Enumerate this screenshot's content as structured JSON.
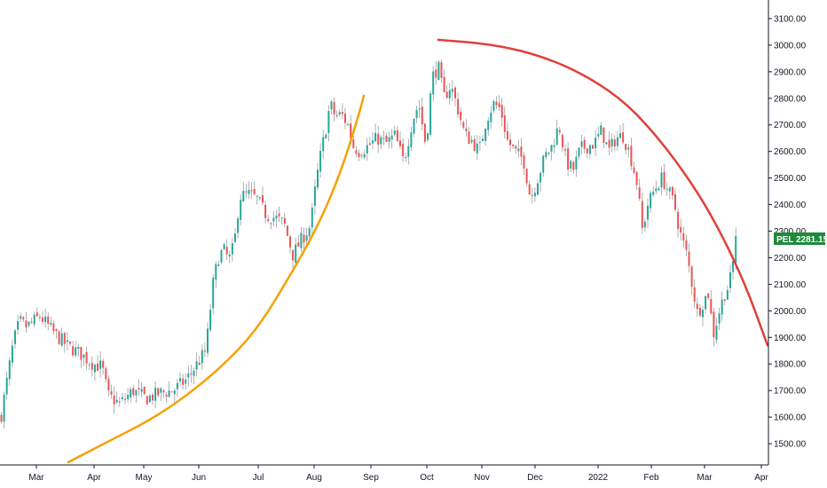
{
  "chart_data": {
    "type": "candlestick",
    "symbol": "PEL",
    "last_price_label": "2281.15",
    "last_price": 2281.15,
    "colors": {
      "up": "#26a69a",
      "down": "#ef5350",
      "price_badge": "#1e8a3c",
      "left_arc": "#f5a100",
      "right_arc": "#e0403a",
      "axis": "#131722",
      "grid_line": "#e0e3eb"
    },
    "x_ticks": [
      "Mar",
      "Apr",
      "May",
      "Jun",
      "Jul",
      "Aug",
      "Sep",
      "Oct",
      "Nov",
      "Dec",
      "2022",
      "Feb",
      "Mar",
      "Apr"
    ],
    "y_ticks": [
      "1500.00",
      "1600.00",
      "1700.00",
      "1800.00",
      "1900.00",
      "2000.00",
      "2100.00",
      "2200.00",
      "2300.00",
      "2400.00",
      "2500.00",
      "2600.00",
      "2700.00",
      "2800.00",
      "2900.00",
      "3000.00",
      "3100.00"
    ],
    "y_range": [
      1420,
      3170
    ],
    "trend_arcs": [
      {
        "name": "left-arc",
        "color": "orange",
        "points": [
          [
            77,
            1430
          ],
          [
            120,
            1505
          ],
          [
            170,
            1590
          ],
          [
            210,
            1680
          ],
          [
            250,
            1790
          ],
          [
            290,
            1930
          ],
          [
            330,
            2150
          ],
          [
            360,
            2330
          ],
          [
            385,
            2530
          ],
          [
            405,
            2745
          ],
          [
            410,
            2810
          ]
        ]
      },
      {
        "name": "right-arc",
        "color": "red",
        "points": [
          [
            494,
            3020
          ],
          [
            550,
            3005
          ],
          [
            600,
            2970
          ],
          [
            650,
            2905
          ],
          [
            700,
            2800
          ],
          [
            740,
            2660
          ],
          [
            780,
            2480
          ],
          [
            810,
            2310
          ],
          [
            840,
            2100
          ],
          [
            865,
            1870
          ]
        ]
      }
    ],
    "series": [
      {
        "name": "price",
        "anchors": [
          [
            1,
            1600
          ],
          [
            8,
            1740
          ],
          [
            15,
            1880
          ],
          [
            22,
            1960
          ],
          [
            30,
            1940
          ],
          [
            45,
            1980
          ],
          [
            60,
            1920
          ],
          [
            75,
            1870
          ],
          [
            90,
            1840
          ],
          [
            105,
            1800
          ],
          [
            115,
            1790
          ],
          [
            122,
            1680
          ],
          [
            135,
            1650
          ],
          [
            150,
            1700
          ],
          [
            165,
            1670
          ],
          [
            180,
            1690
          ],
          [
            195,
            1700
          ],
          [
            210,
            1740
          ],
          [
            222,
            1800
          ],
          [
            232,
            1850
          ],
          [
            240,
            2100
          ],
          [
            246,
            2200
          ],
          [
            252,
            2230
          ],
          [
            258,
            2190
          ],
          [
            264,
            2250
          ],
          [
            270,
            2430
          ],
          [
            280,
            2440
          ],
          [
            290,
            2420
          ],
          [
            300,
            2360
          ],
          [
            310,
            2350
          ],
          [
            320,
            2330
          ],
          [
            330,
            2210
          ],
          [
            340,
            2270
          ],
          [
            350,
            2320
          ],
          [
            356,
            2480
          ],
          [
            362,
            2600
          ],
          [
            368,
            2700
          ],
          [
            372,
            2780
          ],
          [
            378,
            2730
          ],
          [
            385,
            2740
          ],
          [
            392,
            2700
          ],
          [
            398,
            2620
          ],
          [
            405,
            2600
          ],
          [
            415,
            2620
          ],
          [
            425,
            2650
          ],
          [
            435,
            2630
          ],
          [
            445,
            2660
          ],
          [
            455,
            2560
          ],
          [
            465,
            2720
          ],
          [
            472,
            2780
          ],
          [
            480,
            2620
          ],
          [
            487,
            2880
          ],
          [
            494,
            2920
          ],
          [
            500,
            2800
          ],
          [
            508,
            2850
          ],
          [
            516,
            2760
          ],
          [
            524,
            2660
          ],
          [
            532,
            2640
          ],
          [
            540,
            2600
          ],
          [
            548,
            2720
          ],
          [
            556,
            2780
          ],
          [
            564,
            2760
          ],
          [
            572,
            2640
          ],
          [
            580,
            2600
          ],
          [
            590,
            2570
          ],
          [
            598,
            2420
          ],
          [
            606,
            2500
          ],
          [
            614,
            2580
          ],
          [
            622,
            2620
          ],
          [
            630,
            2700
          ],
          [
            638,
            2560
          ],
          [
            646,
            2530
          ],
          [
            654,
            2610
          ],
          [
            662,
            2620
          ],
          [
            670,
            2630
          ],
          [
            678,
            2680
          ],
          [
            686,
            2600
          ],
          [
            694,
            2650
          ],
          [
            702,
            2660
          ],
          [
            710,
            2590
          ],
          [
            718,
            2480
          ],
          [
            724,
            2300
          ],
          [
            730,
            2400
          ],
          [
            738,
            2460
          ],
          [
            746,
            2500
          ],
          [
            752,
            2460
          ],
          [
            760,
            2400
          ],
          [
            766,
            2300
          ],
          [
            774,
            2210
          ],
          [
            780,
            2100
          ],
          [
            786,
            1990
          ],
          [
            792,
            2030
          ],
          [
            798,
            2070
          ],
          [
            804,
            1910
          ],
          [
            810,
            1990
          ],
          [
            816,
            2060
          ],
          [
            822,
            2100
          ],
          [
            828,
            2220
          ],
          [
            832,
            2281
          ]
        ]
      }
    ]
  }
}
